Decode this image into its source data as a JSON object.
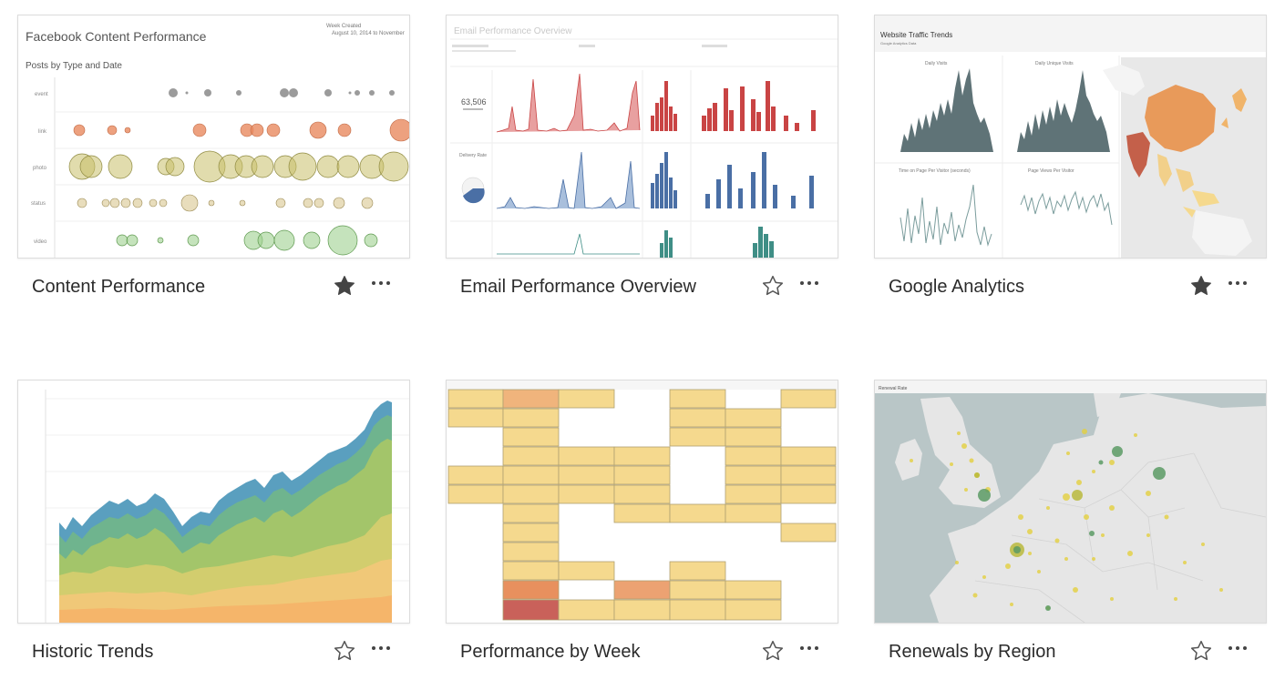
{
  "workbooks": [
    {
      "title": "Content Performance",
      "favorite": true,
      "preview": {
        "heading": "Facebook Content Performance",
        "subheading": "Posts by Type and Date",
        "legend_title": "Week Created",
        "date_range": "August 10, 2014 to November",
        "rows": [
          "event",
          "link",
          "photo",
          "status",
          "video"
        ]
      }
    },
    {
      "title": "Email Performance Overview",
      "favorite": false,
      "preview": {
        "heading": "Email Performance Overview",
        "metric_value": "63,506",
        "metric_label": "Delivery Rate"
      }
    },
    {
      "title": "Google Analytics",
      "favorite": true,
      "preview": {
        "heading": "Website Traffic Trends",
        "subheading": "Google Analytics Data",
        "panels": [
          "Daily Visits",
          "Daily Unique Visits",
          "Time on Page Per Visitor (seconds)",
          "Page Views Per Visitor"
        ]
      }
    },
    {
      "title": "Historic Trends",
      "favorite": false,
      "preview": {}
    },
    {
      "title": "Performance by Week",
      "favorite": false,
      "preview": {}
    },
    {
      "title": "Renewals by Region",
      "favorite": false,
      "preview": {
        "heading": "Renewal Rate"
      }
    }
  ],
  "colors": {
    "star_filled": "#444444",
    "star_outline": "#555555",
    "card_border": "#dcdcdc"
  },
  "icons": {
    "favorite": "star-icon",
    "menu": "more-options-icon"
  }
}
